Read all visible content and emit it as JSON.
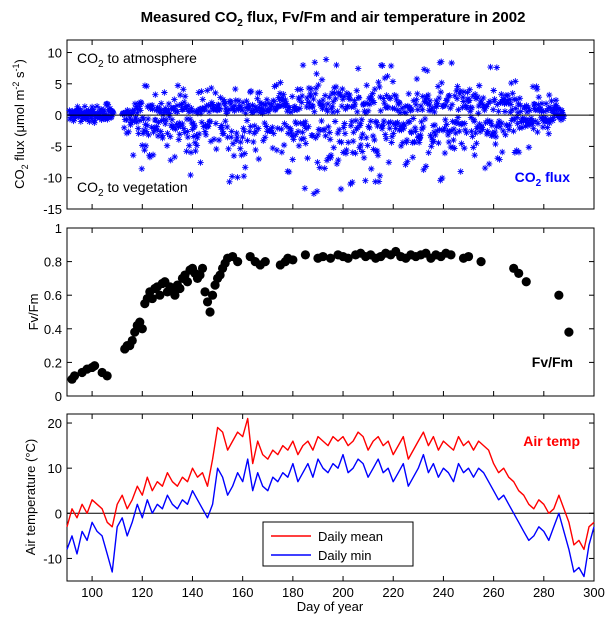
{
  "figure": {
    "title_prefix": "Measured CO",
    "title_sub": "2",
    "title_suffix": " flux, Fv/Fm and air temperature in 2002",
    "shared_xlabel": "Day of year"
  },
  "chart_data": [
    {
      "type": "scatter",
      "name": "co2",
      "ylabel": {
        "prefix": "CO",
        "sub": "2",
        "mid": " flux (μmol m",
        "sup1": "-2",
        "mid2": " s",
        "sup2": "-1",
        "suffix": ")"
      },
      "xlim": [
        90,
        300
      ],
      "ylim": [
        -15,
        12
      ],
      "xticks": [
        100,
        120,
        140,
        160,
        180,
        200,
        220,
        240,
        260,
        280,
        300
      ],
      "yticks": [
        -15,
        -10,
        -5,
        0,
        5,
        10
      ],
      "marker": "asterisk",
      "color": "#0000ff",
      "zero_line": true,
      "annotation_top": {
        "prefix": "CO",
        "sub": "2",
        "suffix": " to atmosphere"
      },
      "annotation_bottom": {
        "prefix": "CO",
        "sub": "2",
        "suffix": " to vegetation"
      },
      "label": {
        "prefix": "CO",
        "sub": "2",
        "suffix": " flux"
      },
      "envelope": {
        "x": [
          91,
          100,
          108,
          110,
          115,
          120,
          125,
          130,
          135,
          140,
          145,
          150,
          155,
          160,
          165,
          170,
          175,
          180,
          185,
          190,
          195,
          200,
          205,
          210,
          215,
          220,
          225,
          230,
          235,
          240,
          245,
          250,
          255,
          260,
          265,
          270,
          275,
          280,
          285,
          288
        ],
        "max": [
          1.5,
          1.5,
          2.0,
          0.5,
          1.0,
          5.5,
          3.5,
          4.0,
          5.0,
          3.5,
          4.0,
          6.0,
          4.5,
          5.0,
          3.5,
          4.0,
          6.0,
          5.0,
          9.0,
          9.5,
          9.0,
          8.0,
          7.5,
          8.0,
          9.0,
          8.5,
          3.0,
          7.0,
          8.0,
          9.0,
          8.0,
          9.5,
          8.5,
          8.0,
          7.0,
          6.0,
          5.0,
          4.0,
          2.5,
          1.0
        ],
        "min": [
          -1.0,
          -1.2,
          -1.5,
          -1.0,
          -6.0,
          -9.0,
          -6.0,
          -7.0,
          -8.0,
          -10.0,
          -8.0,
          -9.0,
          -11.0,
          -10.0,
          -9.0,
          -10.0,
          -11.0,
          -9.0,
          -12.0,
          -13.0,
          -11.0,
          -13.0,
          -11.0,
          -12.0,
          -11.0,
          -10.0,
          -8.0,
          -10.0,
          -9.0,
          -11.0,
          -10.0,
          -10.0,
          -9.0,
          -8.0,
          -7.0,
          -6.0,
          -5.0,
          -4.0,
          -1.5,
          -0.5
        ]
      }
    },
    {
      "type": "scatter",
      "name": "fvfm",
      "ylabel": "Fv/Fm",
      "xlim": [
        90,
        300
      ],
      "ylim": [
        0,
        1
      ],
      "xticks": [
        100,
        120,
        140,
        160,
        180,
        200,
        220,
        240,
        260,
        280,
        300
      ],
      "yticks": [
        0,
        0.2,
        0.4,
        0.6,
        0.8,
        1
      ],
      "ytick_labels": [
        "0",
        "0.2",
        "0.4",
        "0.6",
        "0.8",
        "1"
      ],
      "marker": "dot",
      "color": "#000000",
      "label": "Fv/Fm",
      "x": [
        92,
        93,
        96,
        98,
        100,
        101,
        104,
        106,
        113,
        114,
        115,
        116,
        117,
        118,
        119,
        120,
        121,
        122,
        123,
        124,
        125,
        126,
        127,
        128,
        129,
        130,
        131,
        132,
        133,
        134,
        135,
        136,
        137,
        138,
        139,
        140,
        141,
        142,
        143,
        144,
        145,
        146,
        147,
        148,
        149,
        150,
        151,
        152,
        153,
        154,
        156,
        158,
        163,
        165,
        167,
        169,
        175,
        177,
        178,
        180,
        185,
        190,
        192,
        195,
        198,
        200,
        202,
        205,
        207,
        209,
        211,
        213,
        215,
        217,
        219,
        221,
        223,
        225,
        227,
        229,
        231,
        233,
        235,
        237,
        239,
        241,
        243,
        248,
        250,
        255,
        268,
        270,
        273,
        286,
        290
      ],
      "y": [
        0.1,
        0.12,
        0.14,
        0.16,
        0.17,
        0.18,
        0.14,
        0.12,
        0.28,
        0.3,
        0.3,
        0.33,
        0.38,
        0.42,
        0.44,
        0.4,
        0.55,
        0.58,
        0.62,
        0.58,
        0.64,
        0.65,
        0.6,
        0.67,
        0.68,
        0.62,
        0.65,
        0.63,
        0.6,
        0.66,
        0.64,
        0.7,
        0.72,
        0.68,
        0.75,
        0.76,
        0.73,
        0.7,
        0.72,
        0.76,
        0.62,
        0.56,
        0.5,
        0.6,
        0.66,
        0.7,
        0.72,
        0.76,
        0.79,
        0.82,
        0.83,
        0.8,
        0.83,
        0.8,
        0.78,
        0.8,
        0.78,
        0.8,
        0.82,
        0.81,
        0.84,
        0.82,
        0.83,
        0.82,
        0.84,
        0.83,
        0.82,
        0.84,
        0.85,
        0.83,
        0.84,
        0.82,
        0.83,
        0.85,
        0.84,
        0.86,
        0.83,
        0.82,
        0.84,
        0.83,
        0.84,
        0.85,
        0.82,
        0.84,
        0.83,
        0.85,
        0.84,
        0.82,
        0.83,
        0.8,
        0.76,
        0.73,
        0.68,
        0.6,
        0.38
      ]
    },
    {
      "type": "line",
      "name": "temp",
      "ylabel": "Air temperature (°C)",
      "xlim": [
        90,
        300
      ],
      "ylim": [
        -15,
        22
      ],
      "xticks": [
        100,
        120,
        140,
        160,
        180,
        200,
        220,
        240,
        260,
        280,
        300
      ],
      "yticks": [
        -10,
        0,
        10,
        20
      ],
      "zero_line": true,
      "label": "Air temp",
      "label_color": "#ff0000",
      "legend_position": "bottom-center",
      "xlabel": "Day of year",
      "series": [
        {
          "name": "Daily mean",
          "color": "#ff0000",
          "x": [
            90,
            92,
            94,
            96,
            98,
            100,
            102,
            104,
            106,
            108,
            110,
            112,
            114,
            116,
            118,
            120,
            122,
            124,
            126,
            128,
            130,
            132,
            134,
            136,
            138,
            140,
            142,
            144,
            146,
            148,
            150,
            152,
            154,
            156,
            158,
            160,
            162,
            164,
            166,
            168,
            170,
            172,
            174,
            176,
            178,
            180,
            182,
            184,
            186,
            188,
            190,
            192,
            194,
            196,
            198,
            200,
            202,
            204,
            206,
            208,
            210,
            212,
            214,
            216,
            218,
            220,
            222,
            224,
            226,
            228,
            230,
            232,
            234,
            236,
            238,
            240,
            242,
            244,
            246,
            248,
            250,
            252,
            254,
            256,
            258,
            260,
            262,
            264,
            266,
            268,
            270,
            272,
            274,
            276,
            278,
            280,
            282,
            284,
            286,
            288,
            290,
            292,
            294,
            296,
            298,
            300
          ],
          "y": [
            -3,
            1,
            -1,
            2,
            0,
            3,
            2,
            1,
            -2,
            -3,
            2,
            4,
            1,
            3,
            6,
            4,
            8,
            5,
            7,
            6,
            9,
            7,
            6,
            8,
            7,
            10,
            8,
            9,
            6,
            12,
            19,
            18,
            14,
            16,
            18,
            17,
            21,
            11,
            16,
            13,
            12,
            14,
            13,
            15,
            14,
            16,
            13,
            15,
            16,
            14,
            17,
            16,
            15,
            17,
            16,
            17,
            15,
            16,
            18,
            17,
            14,
            16,
            17,
            15,
            16,
            13,
            15,
            17,
            12,
            14,
            16,
            18,
            15,
            17,
            14,
            16,
            15,
            14,
            17,
            15,
            16,
            14,
            16,
            15,
            14,
            11,
            9,
            10,
            8,
            7,
            5,
            4,
            2,
            1,
            3,
            2,
            0,
            1,
            4,
            1,
            -2,
            -7,
            -6,
            -8,
            -3,
            -2
          ]
        },
        {
          "name": "Daily min",
          "color": "#0000ff",
          "x": [
            90,
            92,
            94,
            96,
            98,
            100,
            102,
            104,
            106,
            108,
            110,
            112,
            114,
            116,
            118,
            120,
            122,
            124,
            126,
            128,
            130,
            132,
            134,
            136,
            138,
            140,
            142,
            144,
            146,
            148,
            150,
            152,
            154,
            156,
            158,
            160,
            162,
            164,
            166,
            168,
            170,
            172,
            174,
            176,
            178,
            180,
            182,
            184,
            186,
            188,
            190,
            192,
            194,
            196,
            198,
            200,
            202,
            204,
            206,
            208,
            210,
            212,
            214,
            216,
            218,
            220,
            222,
            224,
            226,
            228,
            230,
            232,
            234,
            236,
            238,
            240,
            242,
            244,
            246,
            248,
            250,
            252,
            254,
            256,
            258,
            260,
            262,
            264,
            266,
            268,
            270,
            272,
            274,
            276,
            278,
            280,
            282,
            284,
            286,
            288,
            290,
            292,
            294,
            296,
            298,
            300
          ],
          "y": [
            -8,
            -5,
            -9,
            -4,
            -6,
            -2,
            -4,
            -5,
            -9,
            -13,
            -3,
            -1,
            -5,
            -2,
            2,
            -1,
            3,
            0,
            2,
            1,
            4,
            2,
            1,
            3,
            2,
            5,
            3,
            1,
            -1,
            2,
            10,
            8,
            4,
            6,
            9,
            7,
            12,
            5,
            9,
            6,
            5,
            8,
            7,
            9,
            8,
            11,
            7,
            9,
            11,
            8,
            12,
            10,
            9,
            11,
            10,
            13,
            9,
            10,
            12,
            11,
            8,
            10,
            12,
            9,
            10,
            7,
            9,
            11,
            6,
            8,
            10,
            13,
            9,
            11,
            8,
            10,
            9,
            7,
            11,
            9,
            10,
            8,
            10,
            9,
            7,
            5,
            3,
            4,
            2,
            0,
            -2,
            -4,
            -6,
            -5,
            -3,
            -4,
            -6,
            -3,
            0,
            -4,
            -8,
            -13,
            -12,
            -14,
            -7,
            -3
          ]
        }
      ]
    }
  ]
}
